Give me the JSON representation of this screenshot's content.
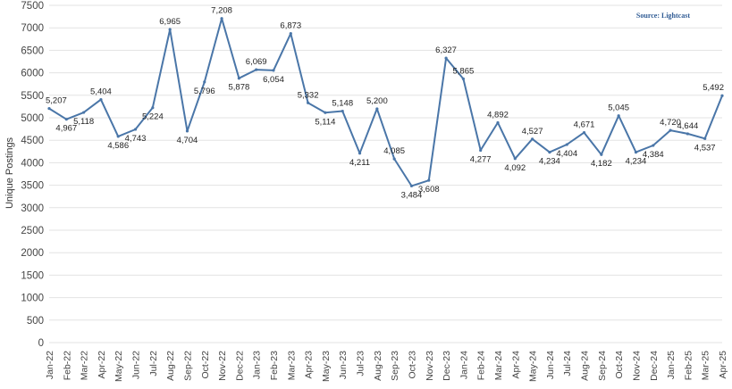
{
  "source": "Source: Lightcast",
  "chart_data": {
    "type": "line",
    "title": "",
    "xlabel": "",
    "ylabel": "Unique Postings",
    "ylim": [
      0,
      7500
    ],
    "y_ticks": [
      "0",
      "500",
      "1000",
      "1500",
      "2000",
      "2500",
      "3000",
      "3500",
      "4000",
      "4500",
      "5000",
      "5500",
      "6000",
      "6500",
      "7000",
      "7500"
    ],
    "grid": true,
    "legend": "none",
    "line_color": "#4a76a8",
    "categories": [
      "Jan-22",
      "Feb-22",
      "Mar-22",
      "Apr-22",
      "May-22",
      "Jun-22",
      "Jul-22",
      "Aug-22",
      "Sep-22",
      "Oct-22",
      "Nov-22",
      "Dec-22",
      "Jan-23",
      "Feb-23",
      "Mar-23",
      "Apr-23",
      "May-23",
      "Jun-23",
      "Jul-23",
      "Aug-23",
      "Sep-23",
      "Oct-23",
      "Nov-23",
      "Dec-23",
      "Jan-24",
      "Feb-24",
      "Mar-24",
      "Apr-24",
      "May-24",
      "Jun-24",
      "Jul-24",
      "Aug-24",
      "Sep-24",
      "Oct-24",
      "Nov-24",
      "Dec-24",
      "Jan-25",
      "Feb-25",
      "Mar-25",
      "Apr-25"
    ],
    "values": [
      5207,
      4967,
      5118,
      5404,
      4586,
      4743,
      5224,
      6965,
      4704,
      5796,
      7208,
      5878,
      6069,
      6054,
      6873,
      5332,
      5114,
      5148,
      4211,
      5200,
      4085,
      3484,
      3608,
      6327,
      5865,
      4277,
      4892,
      4092,
      4527,
      4234,
      4404,
      4671,
      4182,
      5045,
      4234,
      4384,
      4720,
      4644,
      4537,
      5492
    ],
    "labels": [
      "5,207",
      "4,967",
      "5,118",
      "5,404",
      "4,586",
      "4,743",
      "5,224",
      "6,965",
      "4,704",
      "5,796",
      "7,208",
      "5,878",
      "6,069",
      "6,054",
      "6,873",
      "5,332",
      "5,114",
      "5,148",
      "4,211",
      "5,200",
      "4,085",
      "3,484",
      "3,608",
      "6,327",
      "5,865",
      "4,277",
      "4,892",
      "4,092",
      "4,527",
      "4,234",
      "4,404",
      "4,671",
      "4,182",
      "5,045",
      "4,234",
      "4,384",
      "4,720",
      "4,644",
      "4,537",
      "5,492"
    ]
  }
}
